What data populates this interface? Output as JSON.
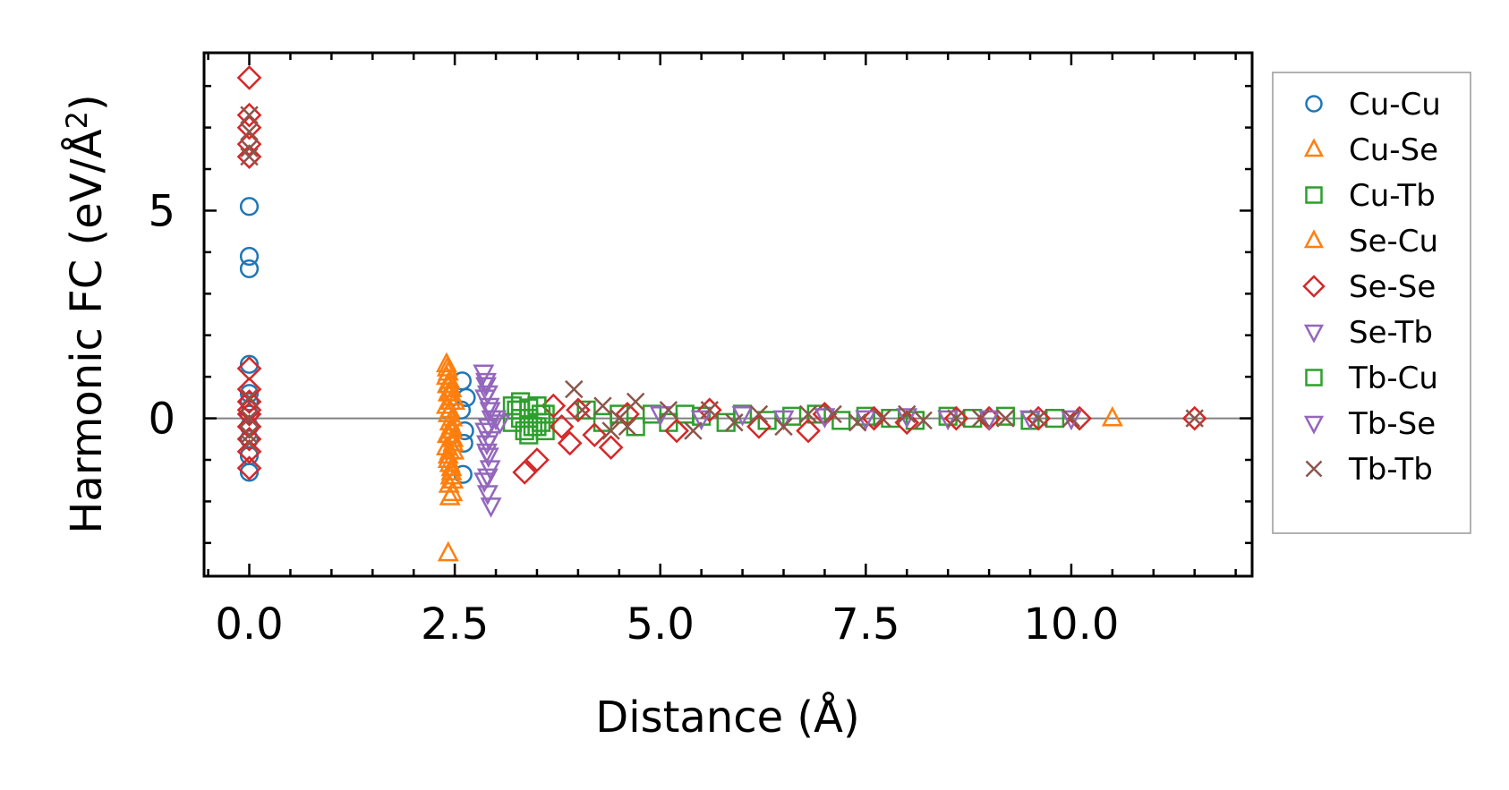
{
  "chart_data": {
    "type": "scatter",
    "title": "",
    "xlabel": "Distance (Å)",
    "ylabel_main": "Harmonic FC (eV/Å",
    "ylabel_sup": "2",
    "ylabel_close": ")",
    "xlim": [
      -0.55,
      12.2
    ],
    "ylim": [
      -3.8,
      8.8
    ],
    "xticks": [
      0.0,
      2.5,
      5.0,
      7.5,
      10.0
    ],
    "xtick_labels": [
      "0.0",
      "2.5",
      "5.0",
      "7.5",
      "10.0"
    ],
    "yticks": [
      0,
      5
    ],
    "ytick_labels": [
      "0",
      "5"
    ],
    "x_minor_step": 0.5,
    "y_minor_step": 1,
    "zero_line": true,
    "legend_position": "outside-right",
    "series": [
      {
        "name": "Cu-Cu",
        "marker": "circle",
        "color": "#1f77b4",
        "x": [
          0,
          0,
          0,
          0,
          0,
          0,
          0,
          0,
          0,
          0,
          0,
          2.6,
          2.62,
          2.58,
          2.64,
          2.61,
          2.59
        ],
        "y": [
          5.1,
          3.9,
          3.6,
          1.3,
          0.4,
          0.1,
          -0.2,
          -0.5,
          -1.3,
          0.6,
          -0.9,
          -1.35,
          -0.3,
          0.2,
          0.5,
          -0.6,
          0.9
        ]
      },
      {
        "name": "Cu-Se",
        "marker": "triangle-up",
        "color": "#ff7f0e",
        "x": [
          2.4,
          2.42,
          2.44,
          2.46,
          2.48,
          2.4,
          2.42,
          2.44,
          2.46,
          2.48,
          2.4,
          2.42,
          2.44,
          2.46,
          2.48,
          2.4,
          2.42,
          2.44,
          2.46,
          2.48,
          2.42,
          2.45,
          2.47,
          2.41,
          2.43,
          2.5,
          2.49,
          10.5
        ],
        "y": [
          1.3,
          1.1,
          0.9,
          0.7,
          0.5,
          0.3,
          0.1,
          -0.1,
          -0.3,
          -0.5,
          -0.7,
          -0.9,
          -1.1,
          -1.3,
          -1.5,
          1.0,
          0.6,
          0.2,
          -0.2,
          -0.6,
          -1.0,
          -1.4,
          -1.8,
          0.8,
          -0.4,
          0.4,
          -0.8,
          0.0
        ]
      },
      {
        "name": "Cu-Tb",
        "marker": "square",
        "color": "#2ca02c",
        "x": [
          3.2,
          3.3,
          3.4,
          3.5,
          3.6,
          3.3,
          3.4,
          3.5,
          3.2,
          3.6,
          4.1,
          4.3,
          4.5,
          4.7,
          4.9,
          5.1,
          5.3,
          5.5,
          5.8,
          6.0,
          6.3,
          6.6,
          6.9,
          7.2,
          7.5,
          7.8,
          8.1,
          8.5,
          8.8,
          9.2,
          9.5,
          9.8
        ],
        "y": [
          0.3,
          0.2,
          0.0,
          -0.2,
          -0.3,
          0.4,
          -0.4,
          0.3,
          -0.1,
          0.1,
          0.2,
          -0.1,
          0.1,
          -0.2,
          0.1,
          -0.1,
          0.1,
          0.05,
          -0.1,
          0.1,
          -0.05,
          0.05,
          0.1,
          -0.05,
          0.05,
          0.0,
          -0.05,
          0.05,
          0.0,
          0.05,
          -0.05,
          0.0
        ]
      },
      {
        "name": "Se-Cu",
        "marker": "triangle-up",
        "color": "#ff7f0e",
        "x": [
          2.41,
          2.43,
          2.45,
          2.47,
          2.41,
          2.44,
          2.46,
          2.43,
          2.45,
          2.47,
          2.42,
          2.44
        ],
        "y": [
          1.2,
          0.8,
          0.4,
          0.0,
          -0.4,
          -0.8,
          -1.2,
          -1.6,
          0.6,
          -0.3,
          -3.25,
          -1.9
        ]
      },
      {
        "name": "Se-Se",
        "marker": "diamond",
        "color": "#d62728",
        "x": [
          0,
          0,
          0,
          0,
          0,
          0,
          0,
          0,
          0,
          0,
          0,
          0,
          0,
          0,
          3.35,
          3.5,
          3.7,
          3.8,
          3.9,
          4.0,
          4.2,
          4.4,
          4.6,
          5.2,
          5.6,
          6.2,
          6.8,
          7.0,
          7.6,
          8.0,
          8.6,
          9.0,
          9.6,
          10.1,
          11.5
        ],
        "y": [
          8.2,
          7.3,
          7.0,
          6.6,
          6.3,
          1.2,
          0.7,
          0.4,
          0.1,
          -0.2,
          -0.5,
          -0.8,
          -1.2,
          0.2,
          -1.3,
          -1.0,
          0.3,
          -0.2,
          -0.6,
          0.2,
          -0.4,
          -0.7,
          0.1,
          -0.3,
          0.2,
          -0.2,
          -0.3,
          0.1,
          0.0,
          -0.1,
          0.0,
          0.0,
          0.0,
          0.0,
          0.0
        ]
      },
      {
        "name": "Se-Tb",
        "marker": "triangle-down",
        "color": "#9467bd",
        "x": [
          2.85,
          2.88,
          2.9,
          2.92,
          2.95,
          2.87,
          2.89,
          2.91,
          2.93,
          2.86,
          2.9,
          2.94,
          2.88,
          2.92,
          5.0,
          5.5,
          6.0,
          6.5,
          7.0,
          7.5,
          8.0,
          8.5,
          9.0,
          9.5,
          10.0
        ],
        "y": [
          1.1,
          0.9,
          0.6,
          0.3,
          0.0,
          -0.3,
          -0.6,
          -0.9,
          -1.2,
          -1.5,
          -1.8,
          -2.1,
          0.8,
          -0.5,
          0.1,
          0.0,
          0.1,
          0.0,
          0.05,
          0.0,
          0.05,
          0.0,
          0.0,
          0.0,
          0.0
        ]
      },
      {
        "name": "Tb-Cu",
        "marker": "square",
        "color": "#2ca02c",
        "x": [
          3.25,
          3.45,
          3.55,
          3.35,
          3.5,
          3.3,
          3.55,
          3.4
        ],
        "y": [
          0.2,
          -0.2,
          0.1,
          -0.3,
          0.3,
          0.0,
          -0.1,
          0.25
        ]
      },
      {
        "name": "Tb-Se",
        "marker": "triangle-down",
        "color": "#9467bd",
        "x": [
          2.87,
          2.91,
          2.89,
          2.93,
          2.9,
          3.0,
          3.05
        ],
        "y": [
          0.5,
          -0.2,
          -0.8,
          0.2,
          -1.4,
          0.0,
          -0.1
        ]
      },
      {
        "name": "Tb-Tb",
        "marker": "x",
        "color": "#8c564b",
        "x": [
          0,
          0,
          0,
          0,
          0,
          0,
          0,
          0,
          3.95,
          4.05,
          4.3,
          4.5,
          4.7,
          4.4,
          4.6,
          5.1,
          5.4,
          5.6,
          5.9,
          6.2,
          6.5,
          6.8,
          7.1,
          7.4,
          7.7,
          8.0,
          8.2,
          8.6,
          8.9,
          9.2,
          9.6,
          10.0,
          11.5
        ],
        "y": [
          7.3,
          6.9,
          6.5,
          6.3,
          0.5,
          0.0,
          -0.4,
          -0.6,
          0.7,
          0.2,
          0.3,
          0.0,
          0.4,
          -0.3,
          -0.2,
          0.2,
          -0.3,
          0.2,
          -0.1,
          0.1,
          -0.2,
          0.1,
          0.1,
          -0.1,
          0.0,
          0.1,
          -0.05,
          0.0,
          0.0,
          0.0,
          0.0,
          0.0,
          0.0
        ]
      }
    ]
  }
}
